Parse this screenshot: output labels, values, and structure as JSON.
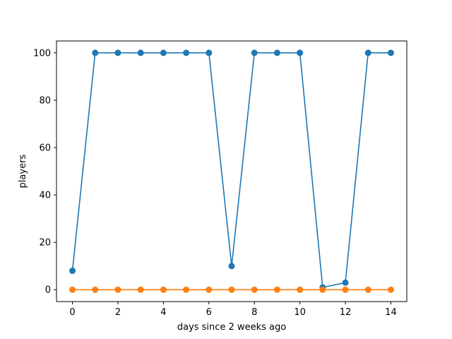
{
  "chart_data": {
    "type": "line",
    "title": "",
    "xlabel": "days since 2 weeks ago",
    "ylabel": "players",
    "x": [
      0,
      1,
      2,
      3,
      4,
      5,
      6,
      7,
      8,
      9,
      10,
      11,
      12,
      13,
      14
    ],
    "xlim": [
      -0.7,
      14.7
    ],
    "ylim": [
      -5,
      105
    ],
    "xticks": [
      0,
      2,
      4,
      6,
      8,
      10,
      12,
      14
    ],
    "yticks": [
      0,
      20,
      40,
      60,
      80,
      100
    ],
    "grid": false,
    "series": [
      {
        "color": "#1f77b4",
        "marker": "circle",
        "values": [
          8,
          100,
          100,
          100,
          100,
          100,
          100,
          10,
          100,
          100,
          100,
          1,
          3,
          100,
          100
        ]
      },
      {
        "color": "#ff7f0e",
        "marker": "circle",
        "values": [
          0,
          0,
          0,
          0,
          0,
          0,
          0,
          0,
          0,
          0,
          0,
          0,
          0,
          0,
          0
        ]
      }
    ]
  }
}
